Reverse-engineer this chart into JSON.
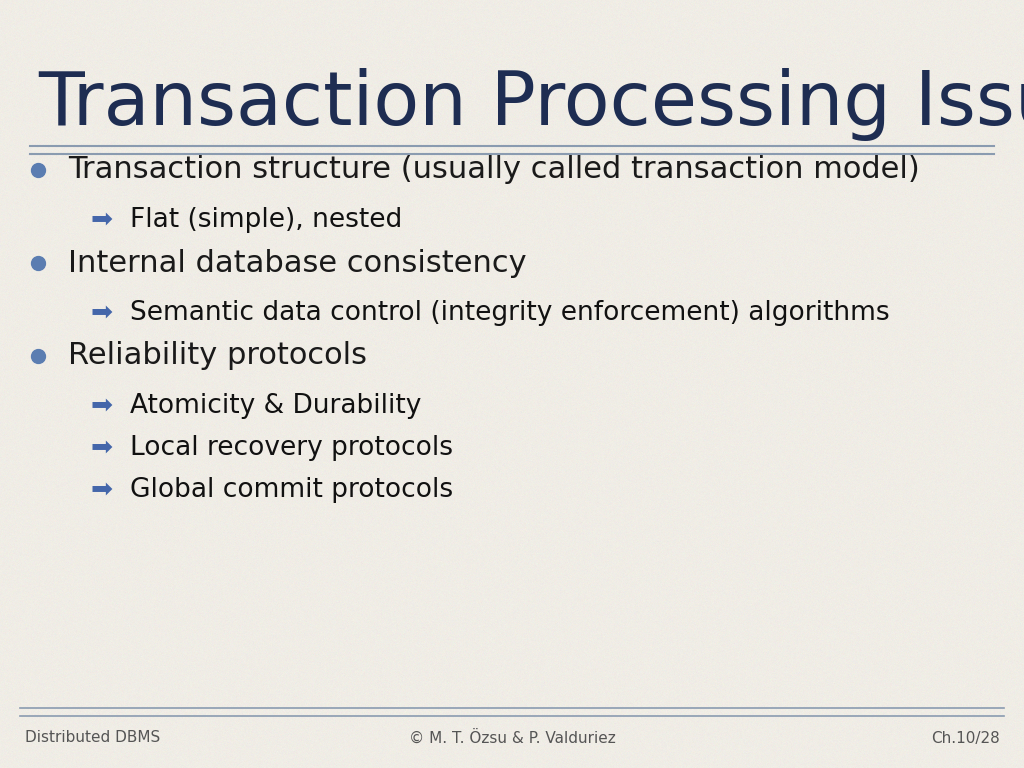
{
  "title": "Transaction Processing Issues",
  "title_color": "#1e2d52",
  "title_fontsize": 54,
  "bg_color": "#f0ede6",
  "separator_color": "#8a9bb0",
  "footer_left": "Distributed DBMS",
  "footer_center": "© M. T. Özsu & P. Valduriez",
  "footer_right": "Ch.10/28",
  "footer_color": "#555555",
  "footer_fontsize": 11,
  "bullet_color": "#5b7db1",
  "bullet_items": [
    {
      "text": "Transaction structure (usually called transaction model)",
      "sub": [
        "Flat (simple), nested"
      ]
    },
    {
      "text": "Internal database consistency",
      "sub": [
        "Semantic data control (integrity enforcement) algorithms"
      ]
    },
    {
      "text": "Reliability protocols",
      "sub": [
        "Atomicity & Durability",
        "Local recovery protocols",
        "Global commit protocols"
      ]
    }
  ],
  "main_fontsize": 22,
  "sub_fontsize": 19,
  "main_text_color": "#1a1a1a",
  "sub_text_color": "#111111",
  "arrow_color": "#4466aa"
}
